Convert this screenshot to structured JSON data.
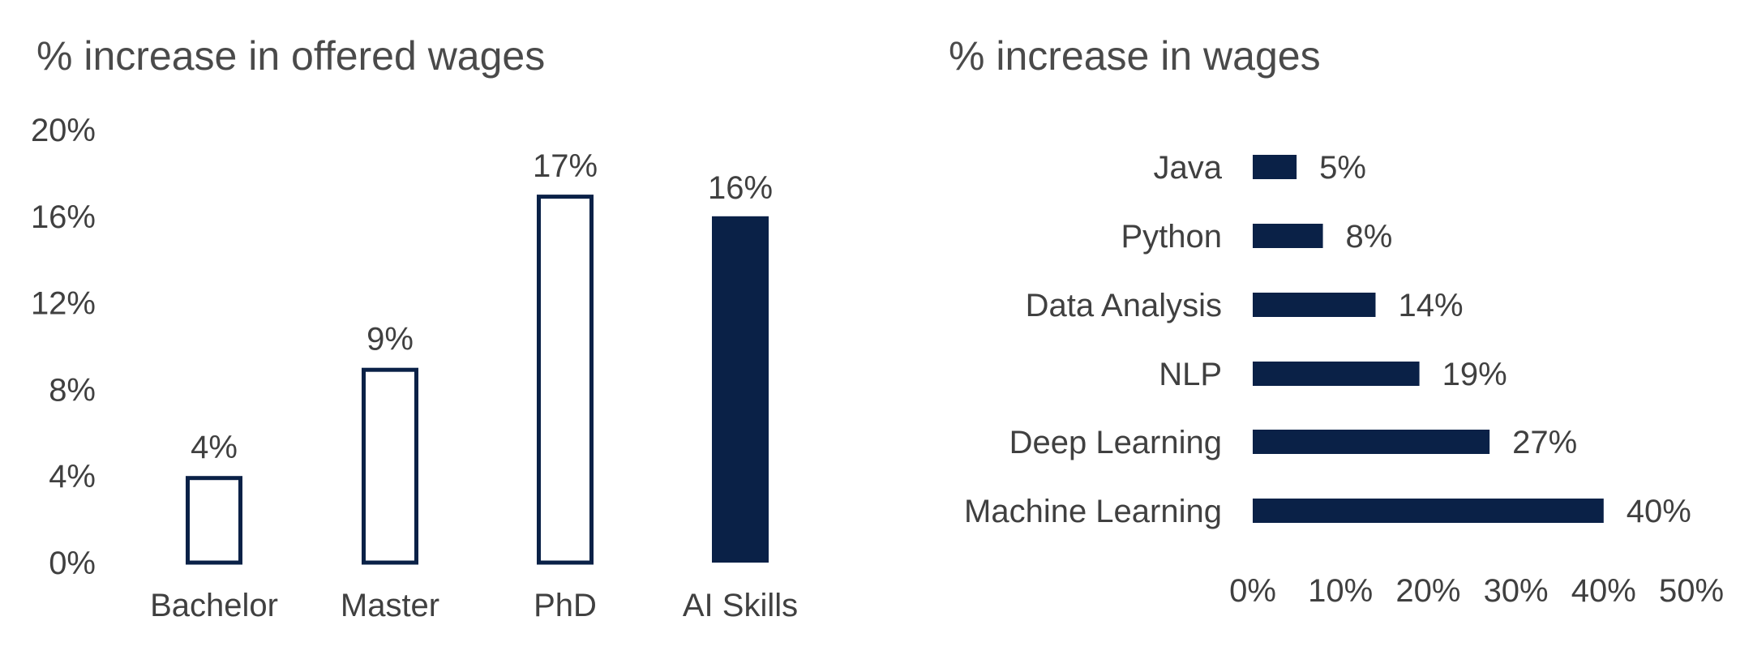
{
  "colors": {
    "navy": "#0a2147",
    "text": "#404040",
    "title": "#4a4a4a"
  },
  "chart_data": [
    {
      "type": "bar",
      "title": "% increase in offered wages",
      "categories": [
        "Bachelor",
        "Master",
        "PhD",
        "AI Skills"
      ],
      "values": [
        4,
        9,
        17,
        16
      ],
      "data_labels": [
        "4%",
        "9%",
        "17%",
        "16%"
      ],
      "fill": [
        "outline",
        "outline",
        "outline",
        "solid"
      ],
      "ylim": [
        0,
        20
      ],
      "yticks": [
        0,
        4,
        8,
        12,
        16,
        20
      ],
      "ytick_labels": [
        "0%",
        "4%",
        "8%",
        "12%",
        "16%",
        "20%"
      ],
      "grid": false,
      "legend": "none"
    },
    {
      "type": "bar",
      "orientation": "horizontal",
      "title": "% increase in wages",
      "categories": [
        "Java",
        "Python",
        "Data Analysis",
        "NLP",
        "Deep Learning",
        "Machine Learning"
      ],
      "values": [
        5,
        8,
        14,
        19,
        27,
        40
      ],
      "data_labels": [
        "5%",
        "8%",
        "14%",
        "19%",
        "27%",
        "40%"
      ],
      "xlim": [
        0,
        50
      ],
      "xticks": [
        0,
        10,
        20,
        30,
        40,
        50
      ],
      "xtick_labels": [
        "0%",
        "10%",
        "20%",
        "30%",
        "40%",
        "50%"
      ],
      "grid": false,
      "legend": "none"
    }
  ]
}
